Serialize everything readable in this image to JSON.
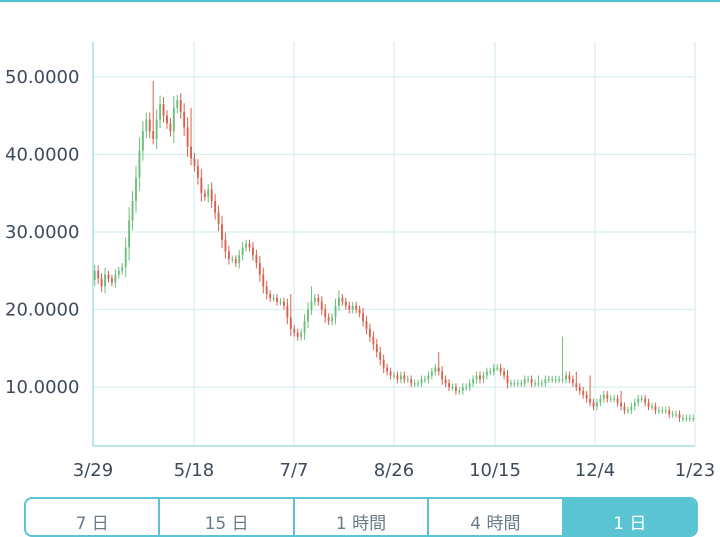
{
  "range_selector": {
    "buttons": [
      {
        "label": "7 日",
        "active": false
      },
      {
        "label": "15 日",
        "active": false
      },
      {
        "label": "1 時間",
        "active": false
      },
      {
        "label": "4 時間",
        "active": false
      },
      {
        "label": "1 日",
        "active": true
      }
    ]
  },
  "colors": {
    "up": "#6bbf7c",
    "down": "#d9604d",
    "grid": "#d7eef3",
    "axis": "#a9dce6",
    "accent": "#5bc4d2"
  },
  "chart_data": {
    "type": "candlestick",
    "title": "",
    "xlabel": "",
    "ylabel": "",
    "x_ticks": [
      "3/29",
      "5/18",
      "7/7",
      "8/26",
      "10/15",
      "12/4",
      "1/23"
    ],
    "y_ticks": [
      "10.0000",
      "20.0000",
      "30.0000",
      "40.0000",
      "50.0000"
    ],
    "y_tick_values": [
      10,
      20,
      30,
      40,
      50
    ],
    "ylim": [
      2.4,
      54.5
    ],
    "x_start": "3/29",
    "grid": true,
    "closes": [
      25.0,
      24.0,
      23.0,
      24.5,
      24.0,
      23.5,
      24.5,
      25.0,
      25.5,
      28.0,
      31.5,
      34.0,
      37.0,
      40.5,
      43.0,
      44.5,
      43.0,
      42.0,
      44.5,
      46.5,
      45.0,
      44.0,
      43.0,
      46.0,
      47.0,
      45.5,
      43.5,
      41.0,
      39.5,
      38.5,
      37.0,
      35.0,
      34.5,
      35.5,
      34.0,
      32.5,
      31.0,
      29.0,
      27.5,
      26.5,
      26.5,
      26.0,
      27.0,
      28.0,
      28.5,
      28.0,
      27.0,
      26.0,
      24.5,
      23.0,
      22.0,
      21.5,
      21.5,
      21.0,
      21.0,
      20.5,
      19.0,
      17.5,
      17.0,
      16.5,
      17.0,
      18.5,
      20.0,
      21.0,
      21.5,
      21.0,
      20.0,
      19.0,
      18.5,
      19.0,
      20.5,
      21.5,
      21.0,
      20.5,
      20.0,
      20.5,
      20.0,
      19.5,
      18.5,
      17.5,
      16.5,
      15.5,
      14.5,
      13.5,
      12.5,
      12.0,
      11.5,
      11.5,
      11.0,
      11.5,
      11.0,
      11.0,
      10.5,
      10.5,
      10.5,
      11.0,
      11.0,
      11.5,
      12.0,
      12.5,
      12.0,
      11.0,
      10.5,
      10.0,
      10.0,
      9.5,
      9.5,
      10.0,
      10.0,
      10.5,
      11.0,
      11.5,
      11.0,
      11.5,
      12.0,
      12.0,
      12.5,
      12.5,
      12.0,
      11.5,
      10.5,
      10.5,
      10.5,
      10.5,
      10.5,
      11.0,
      11.0,
      10.5,
      10.5,
      10.5,
      10.5,
      11.0,
      11.0,
      11.0,
      11.0,
      11.0,
      11.0,
      11.5,
      11.0,
      10.5,
      10.0,
      9.5,
      9.0,
      8.5,
      8.0,
      7.5,
      8.0,
      8.5,
      9.0,
      8.5,
      8.5,
      8.5,
      8.0,
      7.5,
      7.0,
      7.0,
      7.5,
      8.0,
      8.5,
      8.5,
      8.0,
      7.5,
      7.5,
      7.0,
      7.0,
      7.0,
      7.0,
      6.5,
      6.5,
      6.5,
      6.0,
      6.0,
      6.0,
      6.0,
      6.0
    ],
    "spikes": {
      "17": 49.5,
      "28": 46.0,
      "57": 22.0,
      "63": 23.0,
      "71": 22.5,
      "100": 14.5,
      "129": 11.5,
      "136": 16.5,
      "140": 12.0,
      "144": 11.5,
      "153": 9.5,
      "158": 8.5
    }
  }
}
